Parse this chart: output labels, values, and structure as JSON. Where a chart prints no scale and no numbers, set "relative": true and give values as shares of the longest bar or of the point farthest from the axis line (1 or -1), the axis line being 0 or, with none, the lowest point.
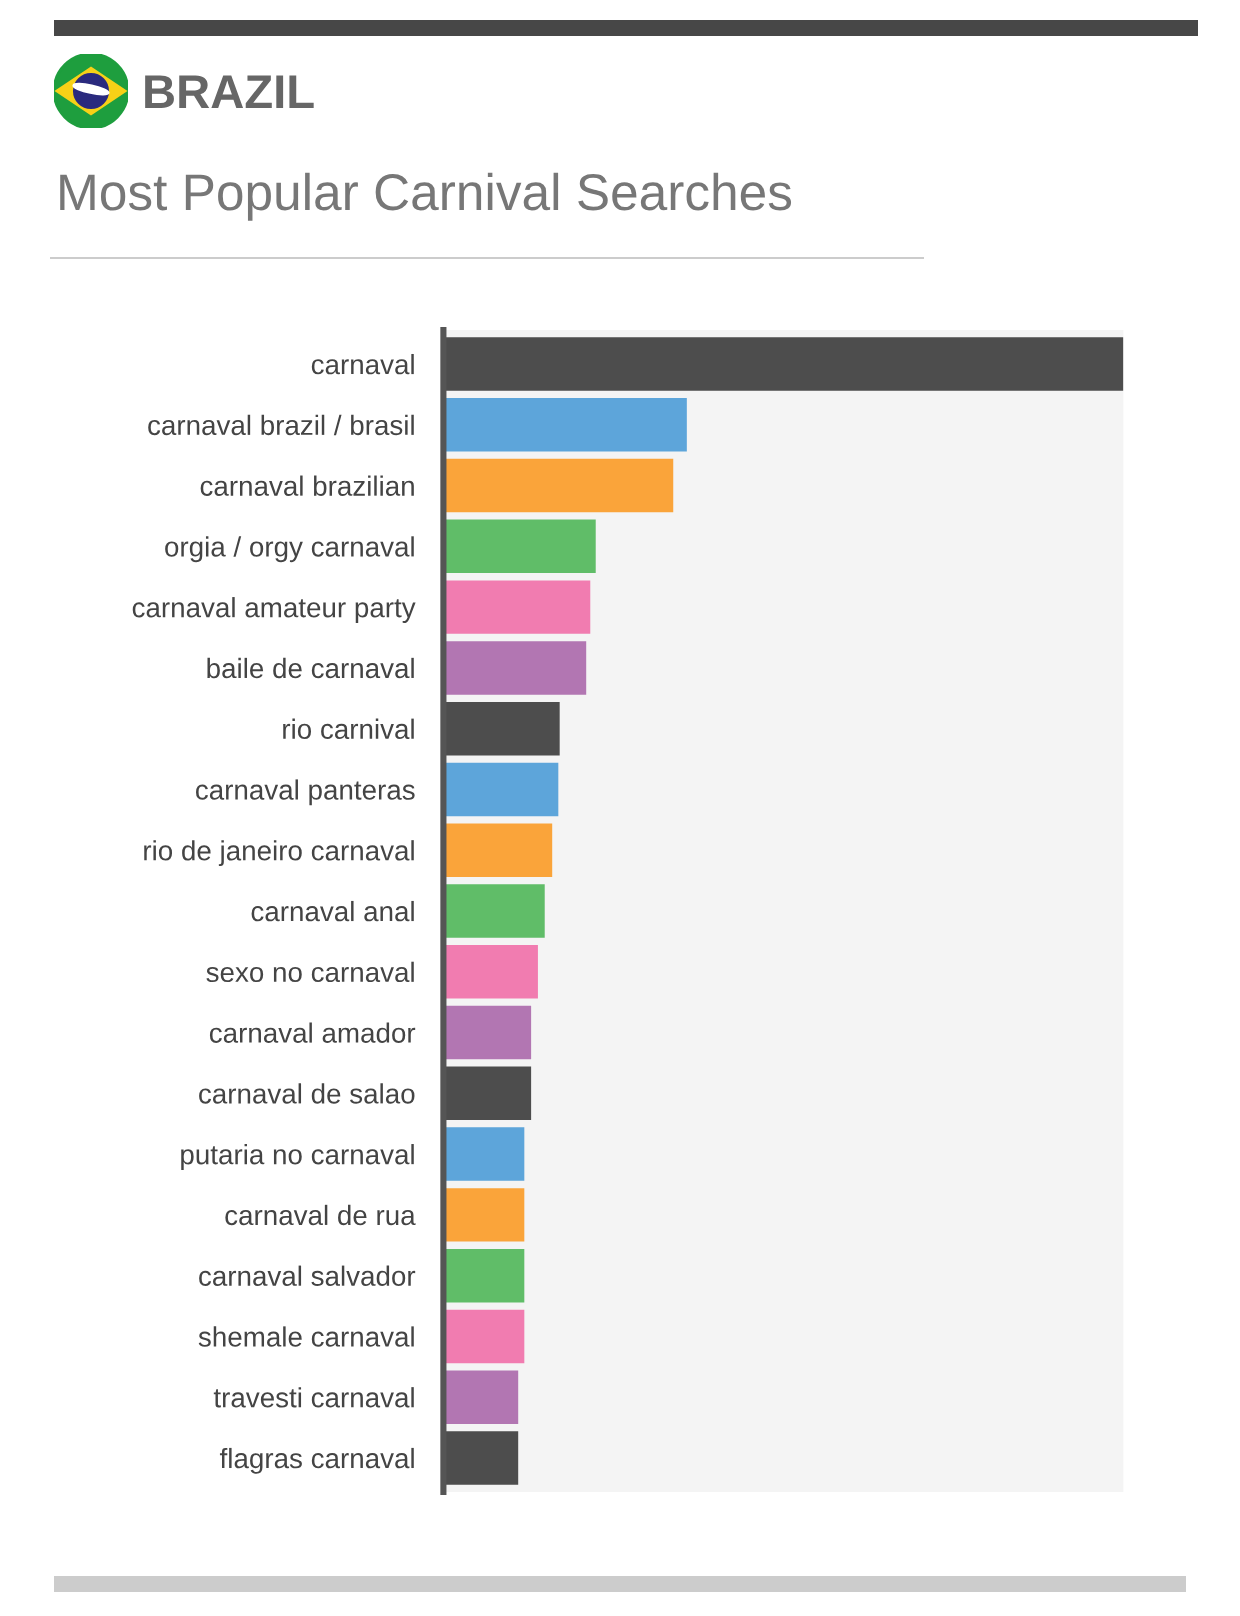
{
  "chart_data": {
    "type": "bar",
    "orientation": "horizontal",
    "relative": true,
    "title": "BRAZIL",
    "subtitle": "Most Popular Carnival Searches",
    "categories": [
      "carnaval",
      "carnaval brazil / brasil",
      "carnaval brazilian",
      "orgia / orgy carnaval",
      "carnaval amateur party",
      "baile de carnaval",
      "rio carnival",
      "carnaval panteras",
      "rio de janeiro carnaval",
      "carnaval anal",
      "sexo no carnaval",
      "carnaval amador",
      "carnaval de salao",
      "putaria no carnaval",
      "carnaval de rua",
      "carnaval salvador",
      "shemale carnaval",
      "travesti carnaval",
      "flagras carnaval"
    ],
    "values": [
      1,
      0.358,
      0.338,
      0.224,
      0.216,
      0.21,
      0.171,
      0.169,
      0.16,
      0.149,
      0.139,
      0.129,
      0.129,
      0.119,
      0.119,
      0.119,
      0.119,
      0.11,
      0.11
    ],
    "colors": [
      "#4d4d4d",
      "#5da5da",
      "#faa43a",
      "#60bd68",
      "#f17cb0",
      "#b276b2",
      "#4d4d4d",
      "#5da5da",
      "#faa43a",
      "#60bd68",
      "#f17cb0",
      "#b276b2",
      "#4d4d4d",
      "#5da5da",
      "#faa43a",
      "#60bd68",
      "#f17cb0",
      "#b276b2",
      "#4d4d4d"
    ],
    "tick_labels": "y"
  }
}
